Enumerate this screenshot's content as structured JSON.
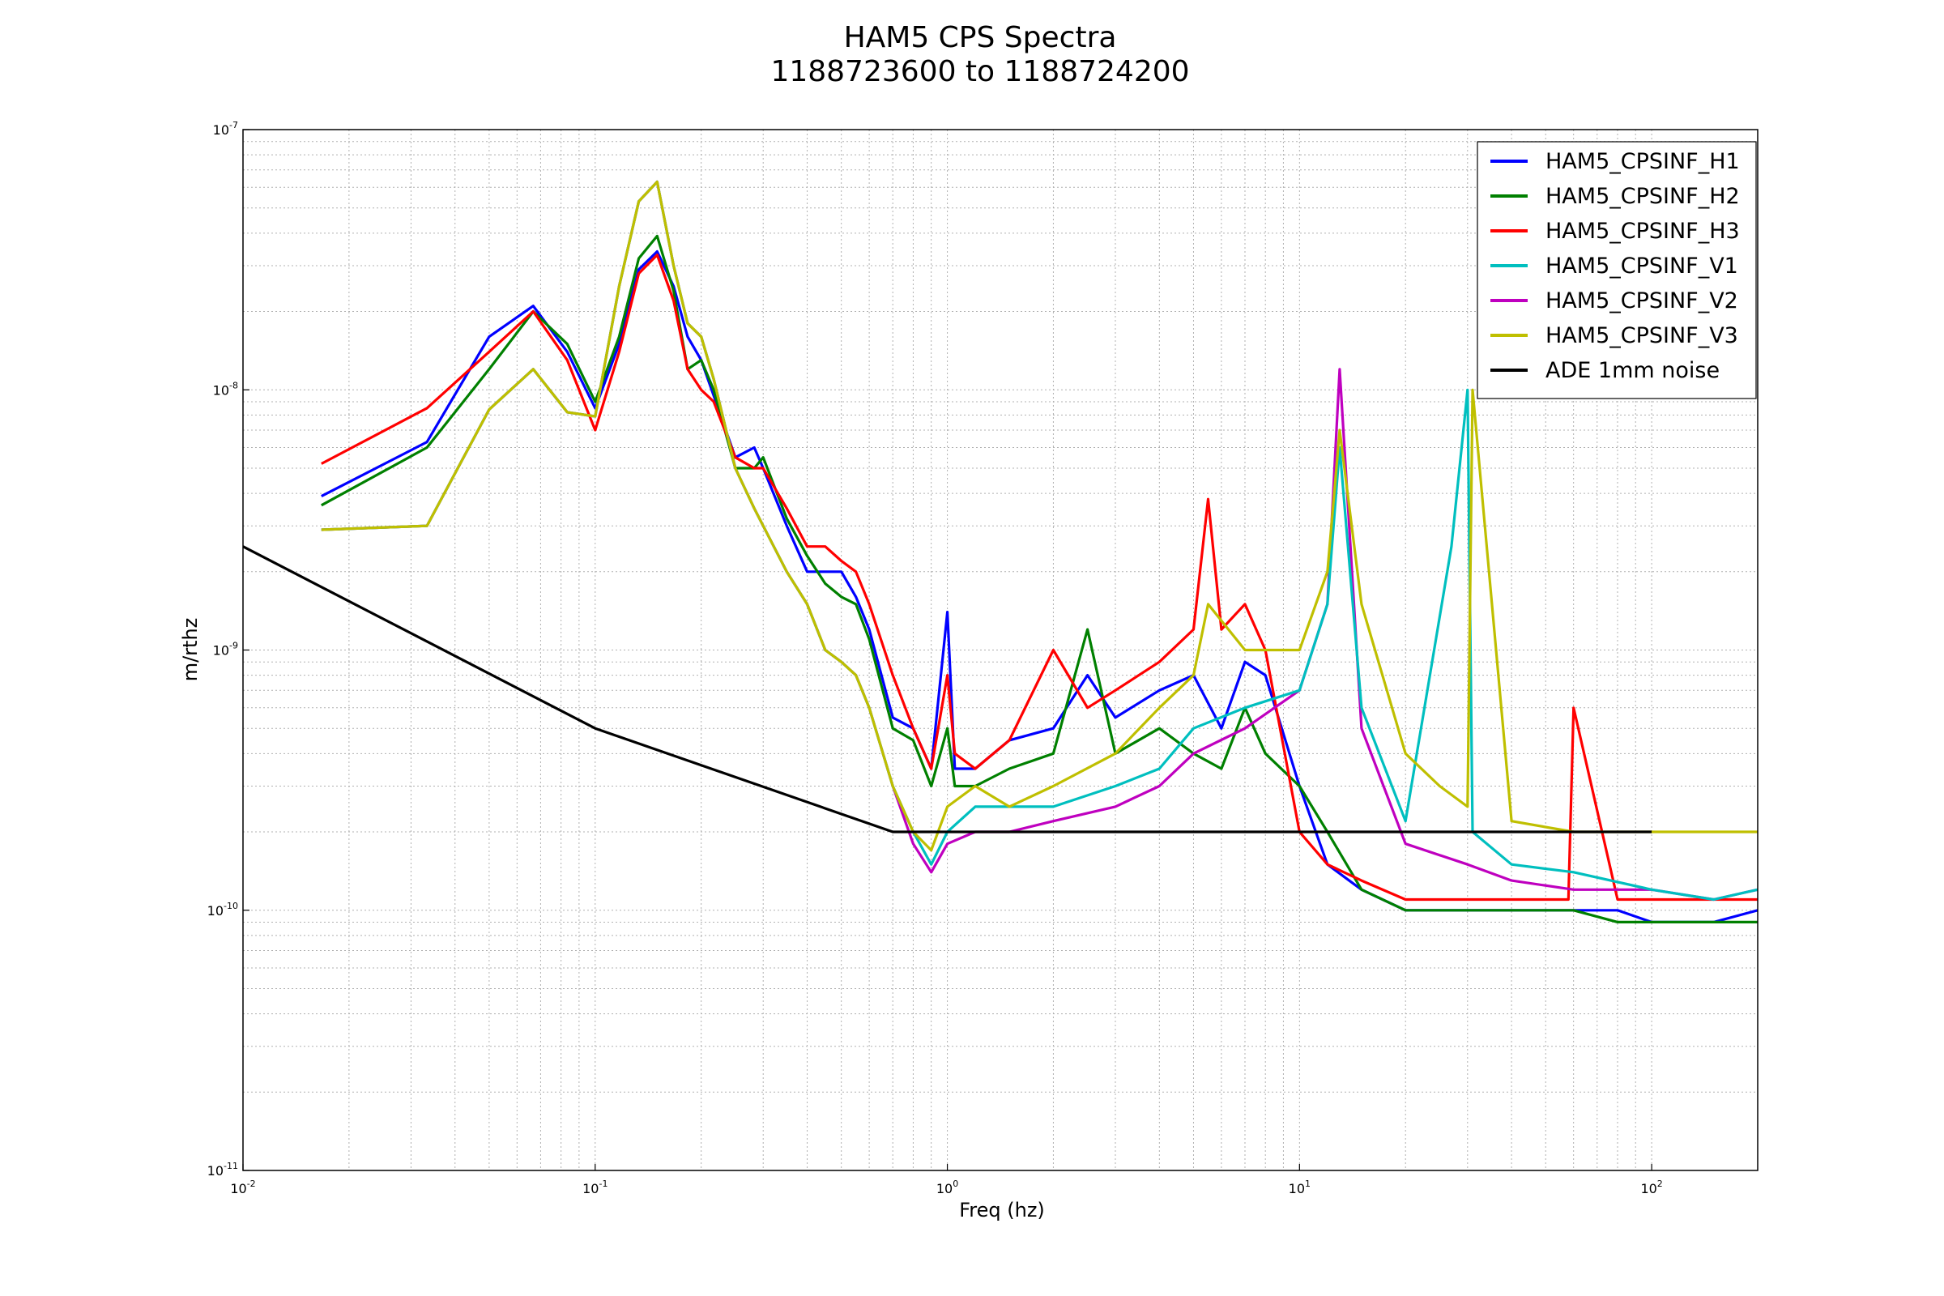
{
  "chart_data": {
    "type": "line",
    "title": "HAM5 CPS Spectra",
    "subtitle": "1188723600 to 1188724200",
    "xlabel": "Freq (hz)",
    "ylabel": "m/rthz",
    "xscale": "log",
    "yscale": "log",
    "xlim": [
      0.01,
      200
    ],
    "ylim": [
      1e-11,
      1e-07
    ],
    "grid": true,
    "legend_position": "top-right",
    "x_ticks": [
      {
        "base": "10",
        "exp": "-2"
      },
      {
        "base": "10",
        "exp": "-1"
      },
      {
        "base": "10",
        "exp": "0"
      },
      {
        "base": "10",
        "exp": "1"
      },
      {
        "base": "10",
        "exp": "2"
      }
    ],
    "y_ticks": [
      {
        "base": "10",
        "exp": "-11"
      },
      {
        "base": "10",
        "exp": "-10"
      },
      {
        "base": "10",
        "exp": "-9"
      },
      {
        "base": "10",
        "exp": "-8"
      },
      {
        "base": "10",
        "exp": "-7"
      }
    ],
    "series": [
      {
        "name": "HAM5_CPSINF_H1",
        "color": "#0000ff",
        "x": [
          0.0167,
          0.0333,
          0.05,
          0.0667,
          0.0833,
          0.1,
          0.117,
          0.133,
          0.15,
          0.167,
          0.183,
          0.2,
          0.217,
          0.25,
          0.283,
          0.3,
          0.35,
          0.4,
          0.45,
          0.5,
          0.55,
          0.6,
          0.7,
          0.8,
          0.9,
          1.0,
          1.05,
          1.2,
          1.5,
          2.0,
          2.5,
          3.0,
          4.0,
          5.0,
          6.0,
          7.0,
          8.0,
          10.0,
          12.0,
          15.0,
          20.0,
          30.0,
          40.0,
          60.0,
          80.0,
          100.0,
          150.0,
          200.0
        ],
        "y": [
          3.9e-09,
          6.3e-09,
          1.6e-08,
          2.1e-08,
          1.4e-08,
          8.5e-09,
          1.5e-08,
          2.9e-08,
          3.4e-08,
          2.5e-08,
          1.6e-08,
          1.3e-08,
          9.5e-09,
          5.5e-09,
          6e-09,
          5e-09,
          3e-09,
          2e-09,
          2e-09,
          2e-09,
          1.6e-09,
          1.2e-09,
          5.5e-10,
          5e-10,
          3.5e-10,
          1.4e-09,
          3.5e-10,
          3.5e-10,
          4.5e-10,
          5e-10,
          8e-10,
          5.5e-10,
          7e-10,
          8e-10,
          5e-10,
          9e-10,
          8e-10,
          3e-10,
          1.5e-10,
          1.2e-10,
          1e-10,
          1e-10,
          1e-10,
          1e-10,
          1e-10,
          9e-11,
          9e-11,
          1e-10
        ]
      },
      {
        "name": "HAM5_CPSINF_H2",
        "color": "#008000",
        "x": [
          0.0167,
          0.0333,
          0.05,
          0.0667,
          0.0833,
          0.1,
          0.117,
          0.133,
          0.15,
          0.167,
          0.183,
          0.2,
          0.217,
          0.25,
          0.283,
          0.3,
          0.35,
          0.4,
          0.45,
          0.5,
          0.55,
          0.6,
          0.7,
          0.8,
          0.9,
          1.0,
          1.05,
          1.2,
          1.5,
          2.0,
          2.5,
          3.0,
          4.0,
          5.0,
          6.0,
          7.0,
          8.0,
          10.0,
          12.0,
          15.0,
          20.0,
          30.0,
          40.0,
          60.0,
          80.0,
          100.0,
          150.0,
          200.0
        ],
        "y": [
          3.6e-09,
          6e-09,
          1.2e-08,
          2e-08,
          1.5e-08,
          9e-09,
          1.6e-08,
          3.2e-08,
          3.9e-08,
          2.4e-08,
          1.2e-08,
          1.3e-08,
          1e-08,
          5e-09,
          5e-09,
          5.5e-09,
          3.2e-09,
          2.3e-09,
          1.8e-09,
          1.6e-09,
          1.5e-09,
          1.1e-09,
          5e-10,
          4.5e-10,
          3e-10,
          5e-10,
          3e-10,
          3e-10,
          3.5e-10,
          4e-10,
          1.2e-09,
          4e-10,
          5e-10,
          4e-10,
          3.5e-10,
          6e-10,
          4e-10,
          3e-10,
          2e-10,
          1.2e-10,
          1e-10,
          1e-10,
          1e-10,
          1e-10,
          9e-11,
          9e-11,
          9e-11,
          9e-11
        ]
      },
      {
        "name": "HAM5_CPSINF_H3",
        "color": "#ff0000",
        "x": [
          0.0167,
          0.0333,
          0.05,
          0.0667,
          0.0833,
          0.1,
          0.117,
          0.133,
          0.15,
          0.167,
          0.183,
          0.2,
          0.217,
          0.25,
          0.283,
          0.3,
          0.35,
          0.4,
          0.45,
          0.5,
          0.55,
          0.6,
          0.7,
          0.8,
          0.9,
          1.0,
          1.05,
          1.2,
          1.5,
          2.0,
          2.5,
          3.0,
          4.0,
          5.0,
          5.5,
          6.0,
          7.0,
          8.0,
          10.0,
          12.0,
          15.0,
          20.0,
          30.0,
          40.0,
          58.0,
          60.0,
          80.0,
          100.0,
          150.0,
          200.0
        ],
        "y": [
          5.2e-09,
          8.5e-09,
          1.4e-08,
          2e-08,
          1.3e-08,
          7e-09,
          1.4e-08,
          2.8e-08,
          3.3e-08,
          2.2e-08,
          1.2e-08,
          1e-08,
          9e-09,
          5.5e-09,
          5e-09,
          5e-09,
          3.5e-09,
          2.5e-09,
          2.5e-09,
          2.2e-09,
          2e-09,
          1.5e-09,
          8e-10,
          5e-10,
          3.5e-10,
          8e-10,
          4e-10,
          3.5e-10,
          4.5e-10,
          1e-09,
          6e-10,
          7e-10,
          9e-10,
          1.2e-09,
          3.8e-09,
          1.2e-09,
          1.5e-09,
          1e-09,
          2e-10,
          1.5e-10,
          1.3e-10,
          1.1e-10,
          1.1e-10,
          1.1e-10,
          1.1e-10,
          6e-10,
          1.1e-10,
          1.1e-10,
          1.1e-10,
          1.1e-10
        ]
      },
      {
        "name": "HAM5_CPSINF_V1",
        "color": "#00bfbf",
        "x": [
          0.0167,
          0.0333,
          0.05,
          0.0667,
          0.0833,
          0.1,
          0.117,
          0.133,
          0.15,
          0.167,
          0.183,
          0.2,
          0.217,
          0.25,
          0.283,
          0.3,
          0.35,
          0.4,
          0.45,
          0.5,
          0.55,
          0.6,
          0.7,
          0.8,
          0.9,
          1.0,
          1.2,
          1.5,
          2.0,
          3.0,
          4.0,
          5.0,
          7.0,
          10.0,
          12.0,
          13.0,
          15.0,
          20.0,
          27.0,
          30.0,
          31.0,
          40.0,
          60.0,
          100.0,
          150.0,
          200.0
        ],
        "y": [
          2.9e-09,
          3e-09,
          8.4e-09,
          1.2e-08,
          8.2e-09,
          7.9e-09,
          2.5e-08,
          5.3e-08,
          6.3e-08,
          3e-08,
          1.8e-08,
          1.6e-08,
          1.1e-08,
          5e-09,
          3.5e-09,
          3e-09,
          2e-09,
          1.5e-09,
          1e-09,
          9e-10,
          8e-10,
          6e-10,
          3e-10,
          2e-10,
          1.5e-10,
          2e-10,
          2.5e-10,
          2.5e-10,
          2.5e-10,
          3e-10,
          3.5e-10,
          5e-10,
          6e-10,
          7e-10,
          1.5e-09,
          6e-09,
          6e-10,
          2.2e-10,
          2.5e-09,
          1e-08,
          2e-10,
          1.5e-10,
          1.4e-10,
          1.2e-10,
          1.1e-10,
          1.2e-10
        ]
      },
      {
        "name": "HAM5_CPSINF_V2",
        "color": "#bf00bf",
        "x": [
          0.0167,
          0.0333,
          0.05,
          0.0667,
          0.0833,
          0.1,
          0.117,
          0.133,
          0.15,
          0.167,
          0.183,
          0.2,
          0.217,
          0.25,
          0.283,
          0.3,
          0.35,
          0.4,
          0.45,
          0.5,
          0.55,
          0.6,
          0.7,
          0.8,
          0.9,
          1.0,
          1.2,
          1.5,
          2.0,
          3.0,
          4.0,
          5.0,
          7.0,
          10.0,
          12.0,
          13.0,
          15.0,
          20.0,
          30.0,
          40.0,
          60.0,
          100.0,
          150.0,
          200.0
        ],
        "y": [
          2.9e-09,
          3e-09,
          8.4e-09,
          1.2e-08,
          8.2e-09,
          7.9e-09,
          2.5e-08,
          5.3e-08,
          6.3e-08,
          3e-08,
          1.8e-08,
          1.6e-08,
          1.1e-08,
          5e-09,
          3.5e-09,
          3e-09,
          2e-09,
          1.5e-09,
          1e-09,
          9e-10,
          8e-10,
          6e-10,
          3e-10,
          1.8e-10,
          1.4e-10,
          1.8e-10,
          2e-10,
          2e-10,
          2.2e-10,
          2.5e-10,
          3e-10,
          4e-10,
          5e-10,
          7e-10,
          1.5e-09,
          1.2e-08,
          5e-10,
          1.8e-10,
          1.5e-10,
          1.3e-10,
          1.2e-10,
          1.2e-10,
          1.1e-10,
          1.2e-10
        ]
      },
      {
        "name": "HAM5_CPSINF_V3",
        "color": "#bfbf00",
        "x": [
          0.0167,
          0.0333,
          0.05,
          0.0667,
          0.0833,
          0.1,
          0.117,
          0.133,
          0.15,
          0.167,
          0.183,
          0.2,
          0.217,
          0.25,
          0.283,
          0.3,
          0.35,
          0.4,
          0.45,
          0.5,
          0.55,
          0.6,
          0.7,
          0.8,
          0.9,
          1.0,
          1.2,
          1.5,
          2.0,
          3.0,
          4.0,
          5.0,
          5.5,
          7.0,
          10.0,
          12.0,
          13.0,
          15.0,
          20.0,
          25.0,
          30.0,
          31.0,
          40.0,
          60.0,
          100.0,
          150.0,
          200.0
        ],
        "y": [
          2.9e-09,
          3e-09,
          8.4e-09,
          1.2e-08,
          8.2e-09,
          7.9e-09,
          2.5e-08,
          5.3e-08,
          6.3e-08,
          3e-08,
          1.8e-08,
          1.6e-08,
          1.1e-08,
          5e-09,
          3.5e-09,
          3e-09,
          2e-09,
          1.5e-09,
          1e-09,
          9e-10,
          8e-10,
          6e-10,
          3e-10,
          2e-10,
          1.7e-10,
          2.5e-10,
          3e-10,
          2.5e-10,
          3e-10,
          4e-10,
          6e-10,
          8e-10,
          1.5e-09,
          1e-09,
          1e-09,
          2e-09,
          7e-09,
          1.5e-09,
          4e-10,
          3e-10,
          2.5e-10,
          1e-08,
          2.2e-10,
          2e-10,
          2e-10,
          2e-10,
          2e-10
        ]
      },
      {
        "name": "ADE 1mm noise",
        "color": "#000000",
        "x": [
          0.01,
          0.1,
          0.7,
          100
        ],
        "y": [
          2.5e-09,
          5e-10,
          2e-10,
          2e-10
        ]
      }
    ]
  }
}
